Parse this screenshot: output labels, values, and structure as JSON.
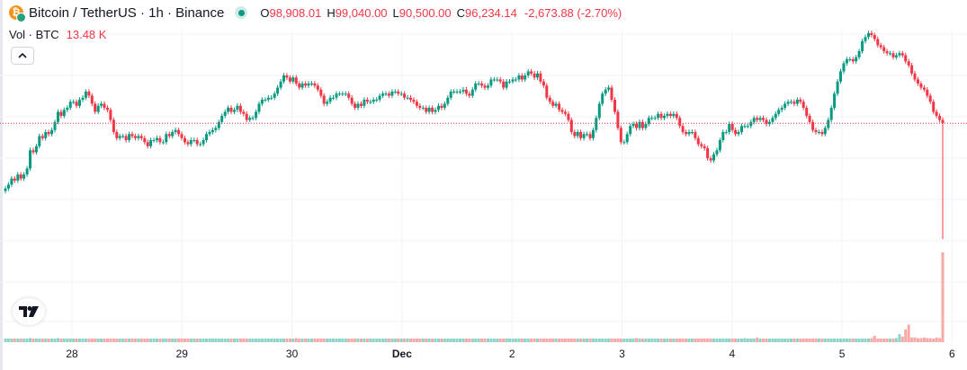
{
  "header": {
    "symbol_title": "Bitcoin / TetherUS · 1h · Binance",
    "coin_icon": "bitcoin-tether-icon",
    "ohlc": [
      {
        "key": "O",
        "value": "98,908.01"
      },
      {
        "key": "H",
        "value": "99,040.00"
      },
      {
        "key": "L",
        "value": "90,500.00"
      },
      {
        "key": "C",
        "value": "96,234.14"
      }
    ],
    "change": "-2,673.88 (-2.70%)"
  },
  "volume_legend": {
    "label": "Vol · BTC",
    "value": "13.48 K"
  },
  "controls": {
    "collapse_icon": "chevron-up-icon",
    "logo_icon": "tradingview-logo-icon"
  },
  "time_axis": [
    {
      "label": "28",
      "bold": false
    },
    {
      "label": "29",
      "bold": false
    },
    {
      "label": "30",
      "bold": false
    },
    {
      "label": "Dec",
      "bold": true
    },
    {
      "label": "2",
      "bold": false
    },
    {
      "label": "3",
      "bold": false
    },
    {
      "label": "4",
      "bold": false
    },
    {
      "label": "5",
      "bold": false
    },
    {
      "label": "6",
      "bold": false
    }
  ],
  "colors": {
    "up": "#089981",
    "down": "#f23645",
    "up_volume": "#8fd3c7",
    "down_volume": "#f7a9a7",
    "grid": "#f0f3fa",
    "price_line": "#f23645"
  },
  "chart_data": {
    "type": "candlestick",
    "interval": "1h",
    "last_close": 96234.14,
    "price_range": [
      89000,
      101000
    ],
    "candles_close": [
      93000.0,
      93200.0,
      93500.0,
      93400.0,
      93700.0,
      93500.0,
      93700.0,
      94000.0,
      94900.0,
      94800.0,
      95100.0,
      95600.0,
      95500.0,
      95800.0,
      95700.0,
      95900.0,
      96300.0,
      96800.0,
      96600.0,
      96900.0,
      97000.0,
      97300.0,
      97300.0,
      97100.0,
      97400.0,
      97500.0,
      97800.0,
      97600.0,
      97200.0,
      96800.0,
      97100.0,
      97200.0,
      97000.0,
      96900.0,
      96400.0,
      95800.0,
      95500.0,
      95600.0,
      95600.0,
      95400.0,
      95700.0,
      95600.0,
      95500.0,
      95600.0,
      95500.0,
      95300.0,
      95100.0,
      95400.0,
      95400.0,
      95500.0,
      95300.0,
      95300.0,
      95700.0,
      95600.0,
      95800.0,
      95900.0,
      95700.0,
      95500.0,
      95300.0,
      95200.0,
      95400.0,
      95400.0,
      95200.0,
      95200.0,
      95400.0,
      95700.0,
      95800.0,
      95900.0,
      96000.0,
      96300.0,
      96600.0,
      96800.0,
      97000.0,
      96800.0,
      96900.0,
      97100.0,
      96800.0,
      96700.0,
      96400.0,
      96500.0,
      96500.0,
      96800.0,
      97200.0,
      97400.0,
      97400.0,
      97500.0,
      97500.0,
      97700.0,
      98000.0,
      98300.0,
      98600.0,
      98500.0,
      98300.0,
      98500.0,
      98200.0,
      98000.0,
      98200.0,
      98100.0,
      98200.0,
      98200.0,
      98100.0,
      97900.0,
      97600.0,
      97200.0,
      97300.0,
      97500.0,
      97500.0,
      97700.0,
      97700.0,
      97700.0,
      97700.0,
      97500.0,
      97200.0,
      97000.0,
      97200.0,
      97100.0,
      97400.0,
      97300.0,
      97300.0,
      97400.0,
      97400.0,
      97600.0,
      97700.0,
      97700.0,
      97600.0,
      97800.0,
      97800.0,
      97700.0,
      97700.0,
      97500.0,
      97500.0,
      97400.0,
      97300.0,
      97100.0,
      97000.0,
      97000.0,
      96800.0,
      97000.0,
      96800.0,
      96900.0,
      97100.0,
      97000.0,
      97200.0,
      97500.0,
      97800.0,
      97800.0,
      97800.0,
      97800.0,
      97900.0,
      97700.0,
      97600.0,
      97900.0,
      98200.0,
      98200.0,
      98100.0,
      98000.0,
      98100.0,
      98400.0,
      98400.0,
      98400.0,
      98300.0,
      98000.0,
      98300.0,
      98300.0,
      98400.0,
      98400.0,
      98600.0,
      98400.0,
      98600.0,
      98800.0,
      98700.0,
      98500.0,
      98700.0,
      98300.0,
      98100.0,
      97500.0,
      97300.0,
      97100.0,
      97200.0,
      96900.0,
      96800.0,
      96700.0,
      96400.0,
      95800.0,
      95600.0,
      95800.0,
      95500.0,
      95700.0,
      95700.0,
      95500.0,
      95900.0,
      96500.0,
      97200.0,
      97700.0,
      97900.0,
      98000.0,
      97400.0,
      96800.0,
      96000.0,
      95300.0,
      95300.0,
      95700.0,
      96100.0,
      96200.0,
      96000.0,
      96300.0,
      96000.0,
      96200.0,
      96500.0,
      96500.0,
      96500.0,
      96700.0,
      96500.0,
      96600.0,
      96700.0,
      96600.0,
      96700.0,
      96500.0,
      96100.0,
      95800.0,
      95700.0,
      95800.0,
      95800.0,
      95500.0,
      95200.0,
      95100.0,
      95000.0,
      94500.0,
      94400.0,
      94700.0,
      94900.0,
      95400.0,
      95800.0,
      95800.0,
      96200.0,
      95900.0,
      95700.0,
      95800.0,
      96100.0,
      96100.0,
      96100.0,
      96300.0,
      96500.0,
      96400.0,
      96500.0,
      96400.0,
      96200.0,
      96300.0,
      96500.0,
      96700.0,
      96900.0,
      97000.0,
      97200.0,
      97300.0,
      97300.0,
      97200.0,
      97400.0,
      97300.0,
      97000.0,
      96600.0,
      96300.0,
      95900.0,
      95800.0,
      95800.0,
      95700.0,
      96000.0,
      96400.0,
      97000.0,
      97700.0,
      98300.0,
      98800.0,
      99200.0,
      99400.0,
      99400.0,
      99300.0,
      99500.0,
      99800.0,
      100300.0,
      100500.0,
      100700.0,
      100600.0,
      100400.0,
      100100.0,
      100000.0,
      99800.0,
      99700.0,
      99700.0,
      99500.0,
      99600.0,
      99700.0,
      99600.0,
      99300.0,
      99100.0,
      98700.0,
      98400.0,
      98200.0,
      98000.0,
      97900.0,
      97600.0,
      97300.0,
      96800.0,
      96600.0,
      96400.0,
      96234.14
    ],
    "volumes": [
      0.2,
      0.2,
      0.2,
      0.2,
      0.3,
      0.3,
      0.3,
      0.2,
      0.5,
      0.3,
      0.3,
      0.3,
      0.3,
      0.2,
      0.3,
      0.3,
      0.4,
      0.5,
      0.4,
      0.3,
      0.3,
      0.3,
      0.3,
      0.3,
      0.3,
      0.3,
      0.3,
      0.2,
      0.2,
      0.2,
      0.2,
      0.2,
      0.2,
      0.2,
      0.2,
      0.3,
      0.3,
      0.3,
      0.2,
      0.2,
      0.3,
      0.2,
      0.2,
      0.3,
      0.3,
      0.2,
      0.3,
      0.3,
      0.3,
      0.3,
      0.3,
      0.3,
      0.3,
      0.3,
      0.3,
      0.2,
      0.3,
      0.2,
      0.2,
      0.2,
      0.2,
      0.2,
      0.2,
      0.3,
      0.2,
      0.3,
      0.2,
      0.2,
      0.2,
      0.3,
      0.3,
      0.3,
      0.3,
      0.2,
      0.2,
      0.3,
      0.3,
      0.2,
      0.3,
      0.2,
      0.2,
      0.3,
      0.4,
      0.3,
      0.3,
      0.3,
      0.3,
      0.3,
      0.3,
      0.3,
      0.4,
      0.4,
      0.3,
      0.3,
      0.5,
      0.3,
      0.3,
      0.3,
      0.3,
      0.3,
      0.2,
      0.2,
      0.2,
      0.2,
      0.2,
      0.2,
      0.2,
      0.2,
      0.2,
      0.2,
      0.2,
      0.2,
      0.3,
      0.2,
      0.2,
      0.2,
      0.2,
      0.2,
      0.2,
      0.2,
      0.2,
      0.2,
      0.2,
      0.2,
      0.2,
      0.2,
      0.2,
      0.2,
      0.2,
      0.2,
      0.2,
      0.2,
      0.2,
      0.2,
      0.2,
      0.2,
      0.2,
      0.2,
      0.2,
      0.2,
      0.2,
      0.2,
      0.2,
      0.2,
      0.3,
      0.3,
      0.2,
      0.3,
      0.2,
      0.2,
      0.3,
      0.2,
      0.2,
      0.3,
      0.3,
      0.3,
      0.3,
      0.2,
      0.2,
      0.3,
      0.3,
      0.3,
      0.2,
      0.3,
      0.3,
      0.2,
      0.3,
      0.3,
      0.3,
      0.3,
      0.3,
      0.3,
      0.3,
      0.3,
      0.3,
      0.3,
      0.3,
      0.3,
      0.3,
      0.4,
      0.3,
      0.3,
      0.3,
      0.3,
      0.3,
      0.3,
      0.3,
      0.3,
      0.4,
      0.3,
      0.3,
      0.2,
      0.3,
      0.3,
      0.3,
      0.4,
      0.4,
      0.3,
      0.3,
      0.3,
      0.3,
      0.3,
      0.4,
      0.4,
      0.5,
      0.4,
      0.4,
      0.3,
      0.3,
      0.3,
      0.3,
      0.3,
      0.3,
      0.2,
      0.3,
      0.3,
      0.3,
      0.2,
      0.2,
      0.2,
      0.2,
      0.2,
      0.2,
      0.3,
      0.2,
      0.2,
      0.2,
      0.2,
      0.3,
      0.2,
      0.2,
      0.3,
      0.3,
      0.3,
      0.3,
      0.3,
      0.3,
      0.3,
      0.3,
      0.5,
      0.4,
      0.3,
      0.3,
      0.6,
      0.4,
      0.3,
      0.3,
      0.3,
      0.3,
      0.3,
      0.3,
      0.2,
      0.2,
      0.3,
      0.2,
      0.3,
      0.2,
      0.3,
      0.2,
      0.2,
      0.2,
      0.2,
      0.3,
      0.3,
      0.2,
      0.2,
      0.2,
      0.2,
      0.2,
      0.2,
      0.2,
      0.3,
      0.3,
      0.3,
      0.3,
      0.2,
      0.3,
      0.3,
      0.4,
      0.3,
      0.5,
      0.8,
      0.4,
      0.3,
      0.3,
      0.3,
      0.4,
      0.4,
      0.5,
      1.0,
      0.7,
      1.6,
      2.2,
      0.6,
      0.6,
      0.5,
      0.5,
      0.6,
      0.5,
      0.5,
      0.4,
      0.6,
      0.5,
      0.5,
      0.5,
      0.6,
      0.4,
      0.6,
      0.8,
      0.5,
      1.0,
      0.6,
      0.6,
      0.6,
      0.6,
      0.6,
      0.5,
      0.8,
      1.1,
      0.8,
      1.8,
      2.2,
      13.48
    ]
  }
}
